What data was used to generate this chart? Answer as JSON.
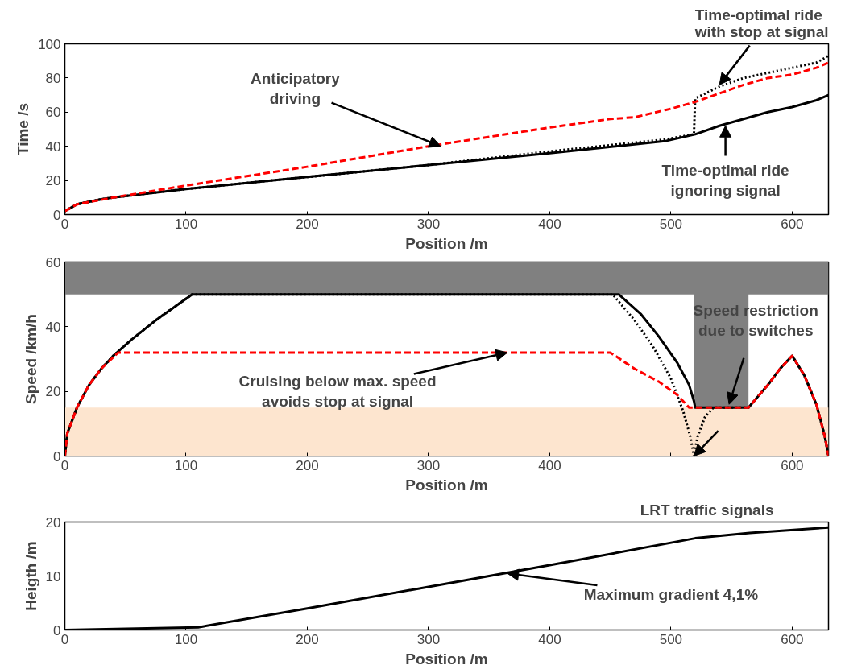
{
  "chart_data": [
    {
      "type": "line",
      "xlabel": "Position /m",
      "ylabel": "Time /s",
      "xlim": [
        0,
        630
      ],
      "ylim": [
        0,
        100
      ],
      "xticks": [
        0,
        100,
        200,
        300,
        400,
        500,
        600
      ],
      "yticks": [
        0,
        20,
        40,
        60,
        80,
        100
      ],
      "grid": false,
      "series": [
        {
          "color": "#000000",
          "line_style": "solid",
          "x": [
            0,
            10,
            30,
            40,
            100,
            200,
            300,
            400,
            495,
            520,
            540,
            560,
            580,
            600,
            620,
            630
          ],
          "values": [
            2,
            6,
            9,
            10,
            15,
            22,
            29,
            36,
            43,
            47,
            52,
            56,
            60,
            63,
            67,
            70
          ]
        },
        {
          "color": "#000000",
          "line_style": "dotted",
          "x": [
            0,
            10,
            30,
            40,
            100,
            200,
            300,
            400,
            495,
            519,
            520,
            540,
            560,
            580,
            600,
            620,
            630
          ],
          "values": [
            2,
            6,
            9,
            10,
            15,
            22,
            29,
            37,
            44,
            47,
            68,
            75,
            80,
            83,
            86,
            89,
            93
          ]
        },
        {
          "color": "#ff0000",
          "line_style": "dashed",
          "x": [
            0,
            10,
            40,
            100,
            200,
            300,
            400,
            450,
            470,
            500,
            520,
            540,
            560,
            580,
            600,
            620,
            630
          ],
          "values": [
            2,
            6,
            10,
            17,
            28,
            40,
            51,
            56,
            57,
            62,
            66,
            71,
            76,
            80,
            82,
            86,
            89
          ]
        }
      ],
      "annotations": [
        {
          "text": "Anticipatory\ndriving",
          "x": 310,
          "y": 40
        },
        {
          "text": "Time-optimal ride\nwith stop at signal",
          "x": 540,
          "y": 76
        },
        {
          "text": "Time-optimal ride\nignoring signal",
          "x": 545,
          "y": 52
        }
      ]
    },
    {
      "type": "line",
      "xlabel": "Position /m",
      "ylabel": "Speed /km/h",
      "xlim": [
        0,
        630
      ],
      "ylim": [
        0,
        60
      ],
      "xticks": [
        0,
        100,
        200,
        300,
        400,
        {
          "value": 500,
          "label": null
        },
        600
      ],
      "yticks": [
        0,
        20,
        40,
        60
      ],
      "grid": false,
      "bands": [
        {
          "axis": "x",
          "from": 519,
          "to": 564,
          "color": "#808080"
        },
        {
          "axis": "y",
          "from": 50,
          "to": 60,
          "color": "#808080"
        },
        {
          "axis": "y",
          "from": 0,
          "to": 15,
          "color": "#fde5cf"
        }
      ],
      "series": [
        {
          "color": "#000000",
          "line_style": "solid",
          "x": [
            0,
            2,
            10,
            20,
            30,
            40,
            55,
            75,
            105,
            457,
            475,
            490,
            505,
            515,
            519,
            520,
            564,
            580,
            590,
            600,
            610,
            620,
            627,
            630
          ],
          "values": [
            0,
            7,
            15,
            22,
            27,
            31,
            36,
            42,
            50,
            50,
            44,
            37,
            29,
            22,
            17,
            15,
            15,
            22,
            27,
            31,
            25,
            16,
            6,
            0
          ]
        },
        {
          "color": "#000000",
          "line_style": "dotted",
          "x": [
            0,
            2,
            10,
            20,
            30,
            40,
            55,
            75,
            105,
            452,
            470,
            485,
            500,
            510,
            516,
            519,
            522,
            528,
            535,
            564,
            580,
            590,
            600,
            610,
            620,
            627,
            630
          ],
          "values": [
            0,
            7,
            15,
            22,
            27,
            31,
            36,
            42,
            50,
            50,
            42,
            34,
            24,
            14,
            6,
            0,
            6,
            12,
            15,
            15,
            22,
            27,
            31,
            25,
            16,
            6,
            0
          ]
        },
        {
          "color": "#ff0000",
          "line_style": "dashed",
          "x": [
            0,
            2,
            10,
            20,
            30,
            44,
            450,
            470,
            490,
            505,
            515,
            564,
            580,
            590,
            600,
            610,
            620,
            627,
            630
          ],
          "values": [
            0,
            7,
            15,
            22,
            27,
            32,
            32,
            27,
            23,
            19,
            15,
            15,
            22,
            27,
            31,
            25,
            16,
            6,
            0
          ]
        }
      ],
      "annotations": [
        {
          "text": "Cruising below max. speed\navoids stop at signal",
          "x": 365,
          "y": 32
        },
        {
          "text": "Speed restriction\ndue to switches",
          "x": 548,
          "y": 16
        },
        {
          "text": "LRT traffic signals",
          "x": 519,
          "y": 0
        }
      ]
    },
    {
      "type": "line",
      "xlabel": "Position /m",
      "ylabel": "Heigth /m",
      "xlim": [
        0,
        630
      ],
      "ylim": [
        0,
        20
      ],
      "xticks": [
        0,
        100,
        200,
        300,
        400,
        500,
        600
      ],
      "yticks": [
        0,
        10,
        20
      ],
      "grid": false,
      "series": [
        {
          "color": "#000000",
          "line_style": "solid",
          "x": [
            0,
            110,
            200,
            300,
            400,
            520,
            565,
            630
          ],
          "values": [
            0,
            0.5,
            4,
            8,
            12,
            17,
            18,
            19
          ]
        }
      ],
      "annotations": [
        {
          "text": "Maximum gradient 4,1%",
          "x": 365,
          "y": 10.5
        }
      ]
    }
  ]
}
